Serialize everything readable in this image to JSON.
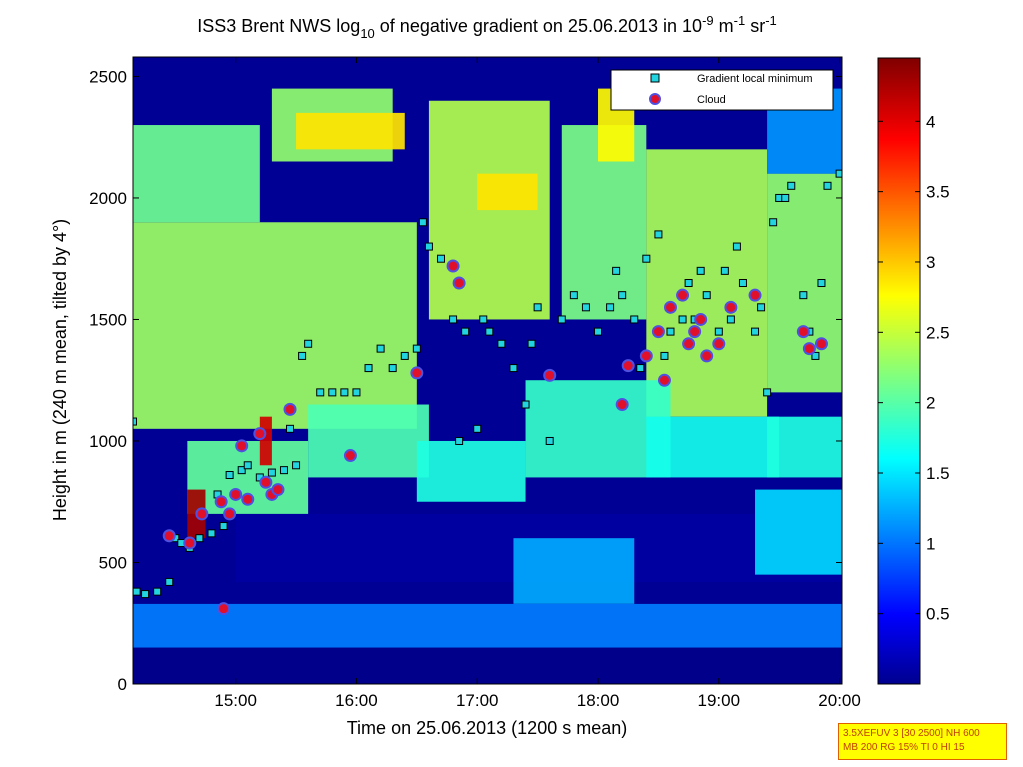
{
  "chart_data": {
    "type": "heatmap",
    "title": {
      "prefix": "ISS3 Brent NWS log",
      "sub": "10",
      "middle": " of negative gradient on 25.06.2013 in 10",
      "exp1": "-9",
      "mid2": " m",
      "exp2": "-1",
      "mid3": " sr",
      "exp3": "-1"
    },
    "xlabel": "Time on 25.06.2013 (1200 s mean)",
    "ylabel": "Height in m (240 m mean, tilted by 4°)",
    "xlim": [
      14.15,
      20.02
    ],
    "ylim": [
      0,
      2580
    ],
    "x_ticks": [
      {
        "value": 15,
        "label": "15:00"
      },
      {
        "value": 16,
        "label": "16:00"
      },
      {
        "value": 17,
        "label": "17:00"
      },
      {
        "value": 18,
        "label": "18:00"
      },
      {
        "value": 19,
        "label": "19:00"
      },
      {
        "value": 20,
        "label": "20:00"
      }
    ],
    "y_ticks": [
      {
        "value": 0,
        "label": "0"
      },
      {
        "value": 500,
        "label": "500"
      },
      {
        "value": 1000,
        "label": "1000"
      },
      {
        "value": 1500,
        "label": "1500"
      },
      {
        "value": 2000,
        "label": "2000"
      },
      {
        "value": 2500,
        "label": "2500"
      }
    ],
    "colorbar": {
      "range": [
        0,
        4.45
      ],
      "ticks": [
        {
          "value": 0.5,
          "label": "0.5"
        },
        {
          "value": 1,
          "label": "1"
        },
        {
          "value": 1.5,
          "label": "1.5"
        },
        {
          "value": 2,
          "label": "2"
        },
        {
          "value": 2.5,
          "label": "2.5"
        },
        {
          "value": 3,
          "label": "3"
        },
        {
          "value": 3.5,
          "label": "3.5"
        },
        {
          "value": 4,
          "label": "4"
        }
      ],
      "colormap": "jet"
    },
    "legend": {
      "placement": "top-right",
      "entries": [
        {
          "label": "Gradient local minimum",
          "marker": "square",
          "color": "#22d3e0"
        },
        {
          "label": "Cloud",
          "marker": "circle",
          "color": "#e0102a"
        }
      ]
    },
    "heatmap_layers": [
      {
        "t0": 14.15,
        "t1": 20.02,
        "h0": 0,
        "h1": 150,
        "value": 0.05
      },
      {
        "t0": 14.15,
        "t1": 20.02,
        "h0": 150,
        "h1": 330,
        "value": 1.1
      },
      {
        "t0": 14.15,
        "t1": 20.02,
        "h0": 330,
        "h1": 2580,
        "value": 0.1
      },
      {
        "t0": 15.0,
        "t1": 20.02,
        "h0": 420,
        "h1": 700,
        "value": 0.15
      },
      {
        "t0": 14.15,
        "t1": 16.5,
        "h0": 1050,
        "h1": 1900,
        "value": 2.35
      },
      {
        "t0": 14.15,
        "t1": 15.2,
        "h0": 1900,
        "h1": 2300,
        "value": 2.15
      },
      {
        "t0": 15.3,
        "t1": 16.3,
        "h0": 2150,
        "h1": 2450,
        "value": 2.3
      },
      {
        "t0": 15.5,
        "t1": 16.4,
        "h0": 2200,
        "h1": 2350,
        "value": 2.9
      },
      {
        "t0": 16.6,
        "t1": 17.6,
        "h0": 1500,
        "h1": 2400,
        "value": 2.45
      },
      {
        "t0": 17.0,
        "t1": 17.5,
        "h0": 1950,
        "h1": 2100,
        "value": 2.9
      },
      {
        "t0": 17.7,
        "t1": 18.4,
        "h0": 1500,
        "h1": 2300,
        "value": 2.2
      },
      {
        "t0": 18.0,
        "t1": 18.3,
        "h0": 2150,
        "h1": 2450,
        "value": 2.8
      },
      {
        "t0": 18.4,
        "t1": 19.4,
        "h0": 1100,
        "h1": 2200,
        "value": 2.4
      },
      {
        "t0": 19.4,
        "t1": 20.02,
        "h0": 1200,
        "h1": 2100,
        "value": 2.3
      },
      {
        "t0": 19.4,
        "t1": 20.02,
        "h0": 2100,
        "h1": 2450,
        "value": 1.2
      },
      {
        "t0": 14.6,
        "t1": 15.6,
        "h0": 700,
        "h1": 1000,
        "value": 2.1
      },
      {
        "t0": 15.6,
        "t1": 16.6,
        "h0": 850,
        "h1": 1150,
        "value": 2.0
      },
      {
        "t0": 16.5,
        "t1": 17.4,
        "h0": 750,
        "h1": 1000,
        "value": 1.8
      },
      {
        "t0": 17.4,
        "t1": 18.6,
        "h0": 850,
        "h1": 1250,
        "value": 1.9
      },
      {
        "t0": 18.4,
        "t1": 19.5,
        "h0": 850,
        "h1": 1100,
        "value": 1.75
      },
      {
        "t0": 19.4,
        "t1": 20.02,
        "h0": 850,
        "h1": 1100,
        "value": 1.8
      },
      {
        "t0": 17.3,
        "t1": 18.3,
        "h0": 330,
        "h1": 600,
        "value": 1.3
      },
      {
        "t0": 19.3,
        "t1": 20.02,
        "h0": 450,
        "h1": 800,
        "value": 1.5
      },
      {
        "t0": 14.6,
        "t1": 14.75,
        "h0": 600,
        "h1": 800,
        "value": 4.3
      },
      {
        "t0": 15.2,
        "t1": 15.3,
        "h0": 900,
        "h1": 1100,
        "value": 4.1
      }
    ],
    "gradient_minimum_points": [
      [
        14.15,
        1080
      ],
      [
        14.18,
        380
      ],
      [
        14.25,
        370
      ],
      [
        14.35,
        380
      ],
      [
        14.45,
        420
      ],
      [
        14.5,
        600
      ],
      [
        14.55,
        580
      ],
      [
        14.62,
        560
      ],
      [
        14.7,
        600
      ],
      [
        14.8,
        620
      ],
      [
        14.85,
        780
      ],
      [
        14.9,
        650
      ],
      [
        14.95,
        860
      ],
      [
        15.05,
        880
      ],
      [
        15.1,
        900
      ],
      [
        15.2,
        850
      ],
      [
        15.3,
        870
      ],
      [
        15.4,
        880
      ],
      [
        15.45,
        1050
      ],
      [
        15.5,
        900
      ],
      [
        15.55,
        1350
      ],
      [
        15.6,
        1400
      ],
      [
        15.7,
        1200
      ],
      [
        15.8,
        1200
      ],
      [
        15.9,
        1200
      ],
      [
        16.0,
        1200
      ],
      [
        16.1,
        1300
      ],
      [
        16.2,
        1380
      ],
      [
        16.3,
        1300
      ],
      [
        16.4,
        1350
      ],
      [
        16.5,
        1380
      ],
      [
        16.55,
        1900
      ],
      [
        16.6,
        1800
      ],
      [
        16.7,
        1750
      ],
      [
        16.8,
        1500
      ],
      [
        16.85,
        1000
      ],
      [
        16.9,
        1450
      ],
      [
        17.0,
        1050
      ],
      [
        17.05,
        1500
      ],
      [
        17.1,
        1450
      ],
      [
        17.2,
        1400
      ],
      [
        17.3,
        1300
      ],
      [
        17.4,
        1150
      ],
      [
        17.45,
        1400
      ],
      [
        17.5,
        1550
      ],
      [
        17.6,
        1000
      ],
      [
        17.7,
        1500
      ],
      [
        17.8,
        1600
      ],
      [
        17.9,
        1550
      ],
      [
        18.0,
        1450
      ],
      [
        18.1,
        1550
      ],
      [
        18.15,
        1700
      ],
      [
        18.2,
        1600
      ],
      [
        18.3,
        1500
      ],
      [
        18.35,
        1300
      ],
      [
        18.4,
        1750
      ],
      [
        18.5,
        1850
      ],
      [
        18.55,
        1350
      ],
      [
        18.6,
        1450
      ],
      [
        18.7,
        1500
      ],
      [
        18.75,
        1650
      ],
      [
        18.8,
        1500
      ],
      [
        18.85,
        1700
      ],
      [
        18.9,
        1600
      ],
      [
        19.0,
        1450
      ],
      [
        19.05,
        1700
      ],
      [
        19.1,
        1500
      ],
      [
        19.15,
        1800
      ],
      [
        19.2,
        1650
      ],
      [
        19.3,
        1450
      ],
      [
        19.35,
        1550
      ],
      [
        19.4,
        1200
      ],
      [
        19.45,
        1900
      ],
      [
        19.5,
        2000
      ],
      [
        19.55,
        2000
      ],
      [
        19.6,
        2050
      ],
      [
        19.7,
        1600
      ],
      [
        19.75,
        1450
      ],
      [
        19.8,
        1350
      ],
      [
        19.85,
        1650
      ],
      [
        19.9,
        2050
      ],
      [
        20.0,
        2100
      ]
    ],
    "cloud_points": [
      [
        14.45,
        610
      ],
      [
        14.62,
        580
      ],
      [
        14.72,
        700
      ],
      [
        14.88,
        750
      ],
      [
        14.9,
        310
      ],
      [
        14.95,
        700
      ],
      [
        15.0,
        780
      ],
      [
        15.05,
        980
      ],
      [
        15.1,
        760
      ],
      [
        15.2,
        1030
      ],
      [
        15.25,
        830
      ],
      [
        15.3,
        780
      ],
      [
        15.35,
        800
      ],
      [
        15.45,
        1130
      ],
      [
        15.95,
        940
      ],
      [
        16.5,
        1280
      ],
      [
        16.8,
        1720
      ],
      [
        16.85,
        1650
      ],
      [
        17.6,
        1270
      ],
      [
        18.2,
        1150
      ],
      [
        18.25,
        1310
      ],
      [
        18.4,
        1350
      ],
      [
        18.5,
        1450
      ],
      [
        18.55,
        1250
      ],
      [
        18.6,
        1550
      ],
      [
        18.7,
        1600
      ],
      [
        18.75,
        1400
      ],
      [
        18.8,
        1450
      ],
      [
        18.85,
        1500
      ],
      [
        18.9,
        1350
      ],
      [
        19.0,
        1400
      ],
      [
        19.1,
        1550
      ],
      [
        19.3,
        1600
      ],
      [
        19.7,
        1450
      ],
      [
        19.75,
        1380
      ],
      [
        19.85,
        1400
      ]
    ]
  },
  "info_box": {
    "line1": "3.5XEFUV 3 [30 2500] NH 600",
    "line2": "MB 200 RG 15% TI 0 HI 15"
  }
}
